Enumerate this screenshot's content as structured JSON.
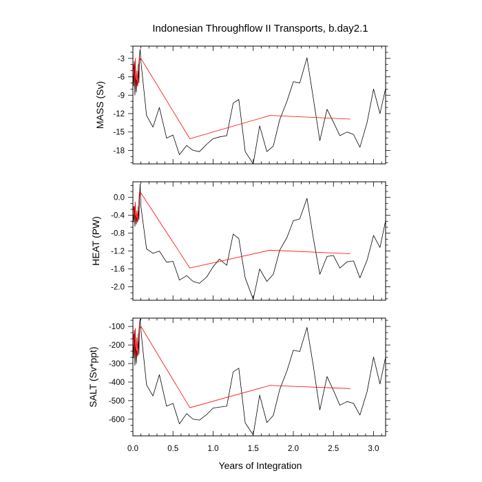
{
  "chart_data": {
    "type": "line",
    "title": "Indonesian Throughflow II Transports, b.day2.1",
    "xlabel": "Years of Integration",
    "xlim": [
      0,
      3.15
    ],
    "xticks": [
      0.0,
      0.5,
      1.0,
      1.5,
      2.0,
      2.5,
      3.0
    ],
    "xtick_labels": [
      "0.0",
      "0.5",
      "1.0",
      "1.5",
      "2.0",
      "2.5",
      "3.0"
    ],
    "grid": false,
    "legend": "none",
    "colors": {
      "raw": "#000000",
      "mean": "#ff0000"
    },
    "panels": [
      {
        "name": "mass",
        "ylabel": "MASS (Sv)",
        "ylim": [
          -20.2,
          -1.0
        ],
        "yticks": [
          -3,
          -6,
          -9,
          -12,
          -15,
          -18
        ],
        "ytick_labels": [
          "-3",
          "-6",
          "-9",
          "-12",
          "-15",
          "-18"
        ],
        "series": [
          {
            "color": "#000000",
            "x": [
              0.0,
              0.008,
              0.017,
              0.025,
              0.033,
              0.042,
              0.05,
              0.058,
              0.067,
              0.075,
              0.083,
              0.09,
              0.1,
              0.17,
              0.25,
              0.33,
              0.42,
              0.5,
              0.58,
              0.67,
              0.75,
              0.83,
              0.92,
              1.0,
              1.08,
              1.17,
              1.25,
              1.32,
              1.4,
              1.5,
              1.58,
              1.67,
              1.75,
              1.83,
              1.92,
              2.0,
              2.08,
              2.17,
              2.25,
              2.33,
              2.42,
              2.5,
              2.58,
              2.67,
              2.75,
              2.83,
              2.92,
              3.0,
              3.08,
              3.15
            ],
            "y": [
              -4.5,
              -7.5,
              -3.5,
              -9.0,
              -5.0,
              -8.5,
              -6.5,
              -7.5,
              -4.0,
              -7.0,
              -2.5,
              -1.5,
              -3.5,
              -12.3,
              -14.2,
              -11.0,
              -16.0,
              -15.5,
              -18.7,
              -17.2,
              -18.0,
              -18.2,
              -17.0,
              -16.1,
              -15.8,
              -15.6,
              -10.3,
              -9.7,
              -18.2,
              -20.2,
              -14.0,
              -18.2,
              -17.3,
              -13.0,
              -10.0,
              -6.8,
              -7.0,
              -2.9,
              -9.6,
              -16.4,
              -11.3,
              -13.4,
              -15.6,
              -15.0,
              -15.4,
              -17.5,
              -13.4,
              -8.0,
              -12.0,
              -7.9
            ]
          },
          {
            "color": "#ff0000",
            "x": [
              0.0,
              0.01,
              0.02,
              0.03,
              0.04,
              0.05,
              0.06,
              0.07,
              0.08,
              0.09,
              0.1,
              0.71,
              1.71,
              2.71
            ],
            "y": [
              -5.5,
              -4.0,
              -7.0,
              -3.0,
              -8.0,
              -5.0,
              -7.5,
              -4.5,
              -2.8,
              -3.2,
              -3.0,
              -16.1,
              -12.3,
              -12.9
            ]
          }
        ]
      },
      {
        "name": "heat",
        "ylabel": "HEAT (PW)",
        "ylim": [
          -2.3,
          0.35
        ],
        "yticks": [
          0.0,
          -0.4,
          -0.8,
          -1.2,
          -1.6,
          -2.0
        ],
        "ytick_labels": [
          "0.0",
          "-0.4",
          "-0.8",
          "-1.2",
          "-1.6",
          "-2.0"
        ],
        "series": [
          {
            "color": "#000000",
            "x": [
              0.0,
              0.008,
              0.017,
              0.025,
              0.033,
              0.042,
              0.05,
              0.058,
              0.067,
              0.075,
              0.083,
              0.09,
              0.1,
              0.17,
              0.25,
              0.33,
              0.42,
              0.5,
              0.58,
              0.67,
              0.75,
              0.83,
              0.92,
              1.0,
              1.08,
              1.17,
              1.25,
              1.32,
              1.4,
              1.5,
              1.58,
              1.67,
              1.75,
              1.83,
              1.92,
              2.0,
              2.08,
              2.17,
              2.25,
              2.33,
              2.42,
              2.5,
              2.58,
              2.67,
              2.75,
              2.83,
              2.92,
              3.0,
              3.08,
              3.15
            ],
            "y": [
              -0.3,
              -0.55,
              -0.2,
              -0.65,
              -0.3,
              -0.6,
              -0.45,
              -0.55,
              -0.2,
              -0.5,
              0.0,
              0.3,
              -0.2,
              -1.15,
              -1.25,
              -1.2,
              -1.45,
              -1.43,
              -1.85,
              -1.75,
              -1.88,
              -1.92,
              -1.78,
              -1.55,
              -1.38,
              -1.52,
              -0.82,
              -0.92,
              -1.8,
              -2.28,
              -1.6,
              -1.88,
              -1.72,
              -1.18,
              -0.9,
              -0.52,
              -0.48,
              -0.02,
              -0.92,
              -1.72,
              -1.32,
              -1.3,
              -1.58,
              -1.44,
              -1.42,
              -1.8,
              -1.4,
              -0.85,
              -1.12,
              -0.52
            ]
          },
          {
            "color": "#ff0000",
            "x": [
              0.0,
              0.01,
              0.02,
              0.03,
              0.04,
              0.05,
              0.06,
              0.07,
              0.08,
              0.09,
              0.1,
              0.71,
              1.71,
              2.71
            ],
            "y": [
              -0.35,
              -0.2,
              -0.5,
              -0.1,
              -0.6,
              -0.3,
              -0.55,
              -0.25,
              0.1,
              0.05,
              0.1,
              -1.58,
              -1.18,
              -1.26
            ]
          }
        ]
      },
      {
        "name": "salt",
        "ylabel": "SALT (Sv*ppt)",
        "ylim": [
          -690,
          -55
        ],
        "yticks": [
          -100,
          -200,
          -300,
          -400,
          -500,
          -600
        ],
        "ytick_labels": [
          "-100",
          "-200",
          "-300",
          "-400",
          "-500",
          "-600"
        ],
        "series": [
          {
            "color": "#000000",
            "x": [
              0.0,
              0.008,
              0.017,
              0.025,
              0.033,
              0.042,
              0.05,
              0.058,
              0.067,
              0.075,
              0.083,
              0.09,
              0.1,
              0.17,
              0.25,
              0.33,
              0.42,
              0.5,
              0.58,
              0.67,
              0.75,
              0.83,
              0.92,
              1.0,
              1.08,
              1.17,
              1.25,
              1.32,
              1.4,
              1.5,
              1.58,
              1.67,
              1.75,
              1.83,
              1.92,
              2.0,
              2.08,
              2.17,
              2.25,
              2.33,
              2.42,
              2.5,
              2.58,
              2.67,
              2.75,
              2.83,
              2.92,
              3.0,
              3.08,
              3.15
            ],
            "y": [
              -160,
              -270,
              -120,
              -310,
              -170,
              -300,
              -230,
              -260,
              -140,
              -250,
              -90,
              -60,
              -120,
              -415,
              -475,
              -360,
              -530,
              -515,
              -625,
              -570,
              -600,
              -605,
              -575,
              -540,
              -535,
              -530,
              -345,
              -325,
              -620,
              -685,
              -470,
              -618,
              -580,
              -440,
              -340,
              -228,
              -235,
              -105,
              -315,
              -550,
              -370,
              -445,
              -525,
              -505,
              -515,
              -578,
              -450,
              -265,
              -410,
              -265
            ]
          },
          {
            "color": "#ff0000",
            "x": [
              0.0,
              0.01,
              0.02,
              0.03,
              0.04,
              0.05,
              0.06,
              0.07,
              0.08,
              0.09,
              0.1,
              0.71,
              1.71,
              2.71
            ],
            "y": [
              -190,
              -140,
              -250,
              -110,
              -270,
              -160,
              -260,
              -150,
              -95,
              -105,
              -100,
              -538,
              -418,
              -435
            ]
          }
        ]
      }
    ]
  }
}
